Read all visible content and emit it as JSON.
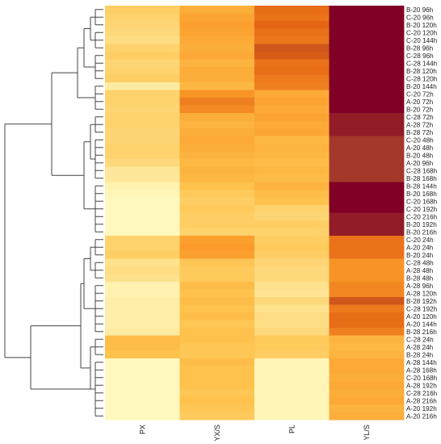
{
  "chart_data": {
    "type": "heatmap",
    "title": "",
    "columns": [
      "PX",
      "YX/S",
      "PL",
      "YL/S"
    ],
    "rows": [
      "B-20 96h",
      "C-20 96h",
      "B-20 120h",
      "C-20 120h",
      "C-20 144h",
      "B-28 96h",
      "C-28 96h",
      "C-28 144h",
      "B-28 120h",
      "C-28 120h",
      "B-20 144h",
      "C-20 72h",
      "A-20 72h",
      "B-20 72h",
      "C-28 72h",
      "A-28 72h",
      "B-28 72h",
      "C-20 48h",
      "A-20 48h",
      "B-20 48h",
      "A-20 96h",
      "C-28 168h",
      "B-28 168h",
      "B-28 144h",
      "B-20 168h",
      "C-20 168h",
      "C-20 192h",
      "C-20 216h",
      "B-20 192h",
      "B-20 216h",
      "C-20 24h",
      "A-20 24h",
      "B-20 24h",
      "C-28 48h",
      "A-28 48h",
      "B-28 48h",
      "A-28 96h",
      "A-28 120h",
      "B-28 192h",
      "C-28 192h",
      "A-20 120h",
      "A-20 144h",
      "B-28 216h",
      "C-28 24h",
      "A-28 24h",
      "B-28 24h",
      "A-28 144h",
      "A-28 168h",
      "C-20 168h",
      "A-28 192h",
      "C-28 216h",
      "A-28 216h",
      "A-20 192h",
      "A-20 216h"
    ],
    "values": [
      [
        0.28,
        0.42,
        0.64,
        1.0
      ],
      [
        0.26,
        0.46,
        0.62,
        1.0
      ],
      [
        0.24,
        0.48,
        0.66,
        1.0
      ],
      [
        0.22,
        0.46,
        0.63,
        1.0
      ],
      [
        0.2,
        0.44,
        0.61,
        1.0
      ],
      [
        0.26,
        0.42,
        0.72,
        1.0
      ],
      [
        0.28,
        0.44,
        0.7,
        1.0
      ],
      [
        0.24,
        0.4,
        0.62,
        1.0
      ],
      [
        0.26,
        0.43,
        0.64,
        1.0
      ],
      [
        0.28,
        0.42,
        0.6,
        1.0
      ],
      [
        0.12,
        0.38,
        0.58,
        1.0
      ],
      [
        0.26,
        0.52,
        0.44,
        1.0
      ],
      [
        0.26,
        0.58,
        0.46,
        1.0
      ],
      [
        0.24,
        0.55,
        0.44,
        1.0
      ],
      [
        0.26,
        0.42,
        0.46,
        0.92
      ],
      [
        0.26,
        0.4,
        0.44,
        0.92
      ],
      [
        0.24,
        0.42,
        0.45,
        0.92
      ],
      [
        0.24,
        0.44,
        0.38,
        0.84
      ],
      [
        0.26,
        0.42,
        0.4,
        0.84
      ],
      [
        0.26,
        0.4,
        0.38,
        0.84
      ],
      [
        0.22,
        0.38,
        0.36,
        0.84
      ],
      [
        0.14,
        0.4,
        0.38,
        0.84
      ],
      [
        0.14,
        0.38,
        0.37,
        0.84
      ],
      [
        0.08,
        0.34,
        0.4,
        1.0
      ],
      [
        0.06,
        0.3,
        0.36,
        1.0
      ],
      [
        0.04,
        0.28,
        0.34,
        1.0
      ],
      [
        0.04,
        0.3,
        0.26,
        1.0
      ],
      [
        0.04,
        0.28,
        0.24,
        0.92
      ],
      [
        0.04,
        0.28,
        0.28,
        0.92
      ],
      [
        0.04,
        0.26,
        0.26,
        0.92
      ],
      [
        0.26,
        0.48,
        0.28,
        0.62
      ],
      [
        0.26,
        0.5,
        0.3,
        0.62
      ],
      [
        0.28,
        0.48,
        0.28,
        0.62
      ],
      [
        0.18,
        0.32,
        0.24,
        0.52
      ],
      [
        0.2,
        0.3,
        0.22,
        0.52
      ],
      [
        0.18,
        0.3,
        0.22,
        0.52
      ],
      [
        0.08,
        0.36,
        0.18,
        0.56
      ],
      [
        0.08,
        0.34,
        0.16,
        0.56
      ],
      [
        0.1,
        0.36,
        0.22,
        0.72
      ],
      [
        0.1,
        0.34,
        0.18,
        0.6
      ],
      [
        0.1,
        0.36,
        0.2,
        0.64
      ],
      [
        0.1,
        0.32,
        0.2,
        0.64
      ],
      [
        0.12,
        0.34,
        0.22,
        0.58
      ],
      [
        0.36,
        0.34,
        0.3,
        0.4
      ],
      [
        0.36,
        0.32,
        0.3,
        0.38
      ],
      [
        0.34,
        0.32,
        0.28,
        0.4
      ],
      [
        0.04,
        0.36,
        0.06,
        0.44
      ],
      [
        0.04,
        0.34,
        0.06,
        0.44
      ],
      [
        0.04,
        0.34,
        0.06,
        0.42
      ],
      [
        0.04,
        0.34,
        0.06,
        0.44
      ],
      [
        0.04,
        0.32,
        0.06,
        0.42
      ],
      [
        0.04,
        0.34,
        0.06,
        0.44
      ],
      [
        0.04,
        0.32,
        0.06,
        0.4
      ],
      [
        0.04,
        0.3,
        0.06,
        0.42
      ]
    ],
    "color_scale": [
      "#ffffcc",
      "#fee391",
      "#fec44f",
      "#fb9a29",
      "#e36414",
      "#a63a2a",
      "#800026"
    ],
    "legend": "none",
    "grid": false
  }
}
